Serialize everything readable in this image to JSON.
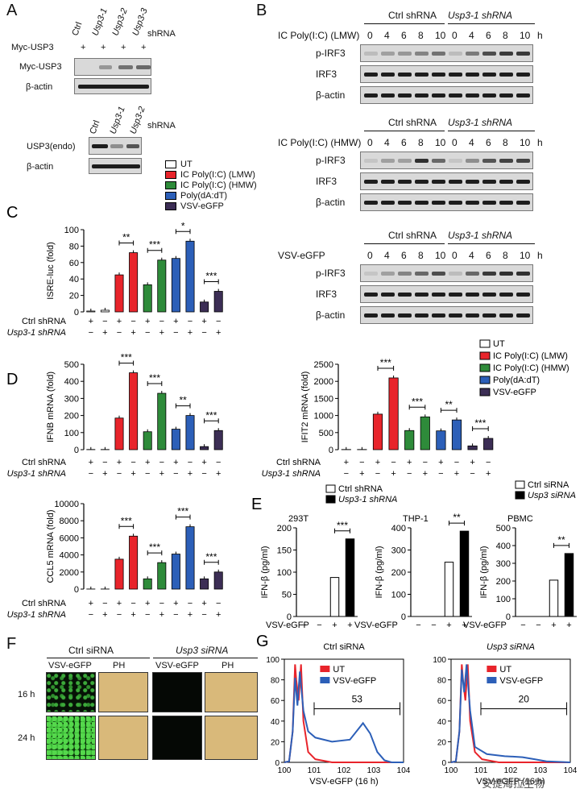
{
  "panelA": {
    "label": "A",
    "top": {
      "lanes": [
        "Ctrl",
        "Usp3-1",
        "Usp3-2",
        "Usp3-3"
      ],
      "suffix": "shRNA",
      "myc_row_label": "Myc-USP3",
      "myc_row_values": [
        "+",
        "+",
        "+",
        "+"
      ],
      "blots": [
        "Myc-USP3",
        "β-actin"
      ]
    },
    "bottom": {
      "lanes": [
        "Ctrl",
        "Usp3-1",
        "Usp3-2"
      ],
      "suffix": "shRNA",
      "blots": [
        "USP3(endo)",
        "β-actin"
      ]
    }
  },
  "panelB": {
    "label": "B",
    "groups": [
      "Ctrl shRNA",
      "Usp3-1 shRNA"
    ],
    "blocks": [
      {
        "treatment": "IC Poly(I:C) (LMW)",
        "times": [
          "0",
          "4",
          "6",
          "8",
          "10",
          "0",
          "4",
          "6",
          "8",
          "10"
        ],
        "unit": "h",
        "blots": [
          "p-IRF3",
          "IRF3",
          "β-actin"
        ]
      },
      {
        "treatment": "IC Poly(I:C) (HMW)",
        "times": [
          "0",
          "4",
          "6",
          "8",
          "10",
          "0",
          "4",
          "6",
          "8",
          "10"
        ],
        "unit": "h",
        "blots": [
          "p-IRF3",
          "IRF3",
          "β-actin"
        ]
      },
      {
        "treatment": "VSV-eGFP",
        "times": [
          "0",
          "4",
          "6",
          "8",
          "10",
          "0",
          "4",
          "6",
          "8",
          "10"
        ],
        "unit": "h",
        "blots": [
          "p-IRF3",
          "IRF3",
          "β-actin"
        ]
      }
    ]
  },
  "legend": {
    "items": [
      "UT",
      "IC Poly(I:C) (LMW)",
      "IC Poly(I:C) (HMW)",
      "Poly(dA:dT)",
      "VSV-eGFP"
    ],
    "colors": [
      "#ffffff",
      "#e8242b",
      "#2e8b3a",
      "#2c5fb8",
      "#3c2e55"
    ]
  },
  "rowlabels": {
    "ctrl": "Ctrl shRNA",
    "usp": "Usp3-1 shRNA",
    "vsv": "VSV-eGFP"
  },
  "figure_labels": {
    "C": "C",
    "D": "D",
    "E": "E",
    "F": "F",
    "G": "G"
  },
  "chart_data": [
    {
      "id": "C",
      "type": "bar",
      "ylabel": "ISRE-luc (fold)",
      "ylim": [
        0,
        100
      ],
      "yticks": [
        0,
        20,
        40,
        60,
        80,
        100
      ],
      "categories": [
        "UT",
        "IC Poly(I:C) (LMW)",
        "IC Poly(I:C) (HMW)",
        "Poly(dA:dT)",
        "VSV-eGFP"
      ],
      "ctrl": [
        1,
        45,
        33,
        65,
        12
      ],
      "usp": [
        2,
        72,
        63,
        86,
        25
      ],
      "sig": [
        "",
        "**",
        "***",
        "*",
        "***"
      ],
      "ctrl_row": [
        "+",
        "−",
        "+",
        "−",
        "+",
        "−",
        "+",
        "−",
        "+",
        "−"
      ],
      "usp_row": [
        "−",
        "+",
        "−",
        "+",
        "−",
        "+",
        "−",
        "+",
        "−",
        "+"
      ]
    },
    {
      "id": "D1",
      "type": "bar",
      "ylabel": "IFNB mRNA (fold)",
      "ylim": [
        0,
        500
      ],
      "yticks": [
        0,
        100,
        200,
        300,
        400,
        500
      ],
      "categories": [
        "UT",
        "IC Poly(I:C) (LMW)",
        "IC Poly(I:C) (HMW)",
        "Poly(dA:dT)",
        "VSV-eGFP"
      ],
      "ctrl": [
        1,
        185,
        105,
        120,
        18
      ],
      "usp": [
        1,
        450,
        330,
        200,
        112
      ],
      "sig": [
        "",
        "***",
        "***",
        "**",
        "***"
      ],
      "ctrl_row": [
        "+",
        "−",
        "+",
        "−",
        "+",
        "−",
        "+",
        "−",
        "+",
        "−"
      ],
      "usp_row": [
        "−",
        "+",
        "−",
        "+",
        "−",
        "+",
        "−",
        "+",
        "−",
        "+"
      ]
    },
    {
      "id": "D2",
      "type": "bar",
      "ylabel": "IFIT2 mRNA (fold)",
      "ylim": [
        0,
        2500
      ],
      "yticks": [
        0,
        500,
        1000,
        1500,
        2000,
        2500
      ],
      "categories": [
        "UT",
        "IC Poly(I:C) (LMW)",
        "IC Poly(I:C) (HMW)",
        "Poly(dA:dT)",
        "VSV-eGFP"
      ],
      "ctrl": [
        5,
        1040,
        560,
        550,
        110
      ],
      "usp": [
        5,
        2100,
        960,
        870,
        330
      ],
      "sig": [
        "",
        "***",
        "***",
        "**",
        "***"
      ],
      "ctrl_row": [
        "+",
        "−",
        "+",
        "−",
        "+",
        "−",
        "+",
        "−",
        "+",
        "−"
      ],
      "usp_row": [
        "−",
        "+",
        "−",
        "+",
        "−",
        "+",
        "−",
        "+",
        "−",
        "+"
      ]
    },
    {
      "id": "D3",
      "type": "bar",
      "ylabel": "CCL5 mRNA (fold)",
      "ylim": [
        0,
        10000
      ],
      "yticks": [
        0,
        2000,
        4000,
        6000,
        8000,
        10000
      ],
      "categories": [
        "UT",
        "IC Poly(I:C) (LMW)",
        "IC Poly(I:C) (HMW)",
        "Poly(dA:dT)",
        "VSV-eGFP"
      ],
      "ctrl": [
        10,
        3500,
        1200,
        4100,
        1200
      ],
      "usp": [
        10,
        6200,
        3100,
        7300,
        2000
      ],
      "sig": [
        "",
        "***",
        "***",
        "***",
        "***"
      ],
      "ctrl_row": [
        "+",
        "−",
        "+",
        "−",
        "+",
        "−",
        "+",
        "−",
        "+",
        "−"
      ],
      "usp_row": [
        "−",
        "+",
        "−",
        "+",
        "−",
        "+",
        "−",
        "+",
        "−",
        "+"
      ]
    },
    {
      "id": "E1",
      "type": "bar",
      "title": "293T",
      "ylabel": "IFN-β (pg/ml)",
      "ylim": [
        0,
        200
      ],
      "yticks": [
        0,
        50,
        100,
        150,
        200
      ],
      "legend": [
        "Ctrl shRNA",
        "Usp3-1 shRNA"
      ],
      "values": [
        0,
        0,
        88,
        175
      ],
      "sig": "***",
      "vsv_row": [
        "−",
        "−",
        "+",
        "+"
      ]
    },
    {
      "id": "E2",
      "type": "bar",
      "title": "THP-1",
      "ylabel": "IFN-β (pg/ml)",
      "ylim": [
        0,
        400
      ],
      "yticks": [
        0,
        100,
        200,
        300,
        400
      ],
      "values": [
        0,
        0,
        245,
        385
      ],
      "sig": "**",
      "vsv_row": [
        "−",
        "−",
        "+",
        "+"
      ]
    },
    {
      "id": "E3",
      "type": "bar",
      "title": "PBMC",
      "ylabel": "IFN-β (pg/ml)",
      "ylim": [
        0,
        500
      ],
      "yticks": [
        0,
        100,
        200,
        300,
        400,
        500
      ],
      "legend": [
        "Ctrl siRNA",
        "Usp3 siRNA"
      ],
      "values": [
        0,
        0,
        205,
        355
      ],
      "sig": "**",
      "vsv_row": [
        "−",
        "−",
        "+",
        "+"
      ]
    },
    {
      "id": "G1",
      "type": "line",
      "title": "Ctrl siRNA",
      "xlabel": "VSV-eGFP (16 h)",
      "ylim": [
        0,
        100
      ],
      "yticks": [
        0,
        20,
        40,
        60,
        80,
        100
      ],
      "xticks": [
        "10^0",
        "10^1",
        "10^2",
        "10^3",
        "10^4"
      ],
      "gate_value": "53",
      "series": [
        {
          "name": "UT",
          "color": "#e8242b"
        },
        {
          "name": "VSV-eGFP",
          "color": "#2c5fb8"
        }
      ]
    },
    {
      "id": "G2",
      "type": "line",
      "title": "Usp3 siRNA",
      "xlabel": "VSV-eGFP (16 h)",
      "ylim": [
        0,
        100
      ],
      "yticks": [
        0,
        20,
        40,
        60,
        80,
        100
      ],
      "xticks": [
        "10^0",
        "10^1",
        "10^2",
        "10^3",
        "10^4"
      ],
      "gate_value": "20",
      "series": [
        {
          "name": "UT",
          "color": "#e8242b"
        },
        {
          "name": "VSV-eGFP",
          "color": "#2c5fb8"
        }
      ]
    }
  ],
  "panelF": {
    "label": "F",
    "groups": [
      "Ctrl siRNA",
      "Usp3 siRNA"
    ],
    "cols": [
      "VSV-eGFP",
      "PH",
      "VSV-eGFP",
      "PH"
    ],
    "rows": [
      "16 h",
      "24 h"
    ]
  },
  "watermark": "安提海拉生物"
}
